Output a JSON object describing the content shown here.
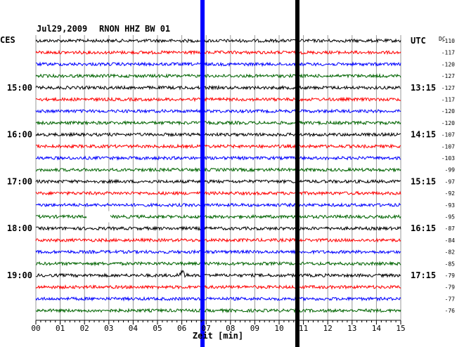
{
  "header": {
    "date": "Jul29,2009",
    "station": "RNON HHZ BW 01",
    "left_zone": "CES",
    "right_zone": "UTC",
    "dc_label": "DC"
  },
  "chart_data": {
    "type": "line",
    "title": "Jul29,2009  RNON HHZ BW 01",
    "xlabel": "Zeit [min]",
    "xlim": [
      0,
      15
    ],
    "x_ticks": [
      "00",
      "01",
      "02",
      "03",
      "04",
      "05",
      "06",
      "07",
      "08",
      "09",
      "10",
      "11",
      "12",
      "13",
      "14",
      "15"
    ],
    "trace_colors": [
      "#000000",
      "#ff0000",
      "#0000ff",
      "#006400"
    ],
    "left_hour_labels": [
      {
        "trace": 4,
        "label": "15:00"
      },
      {
        "trace": 8,
        "label": "16:00"
      },
      {
        "trace": 12,
        "label": "17:00"
      },
      {
        "trace": 16,
        "label": "18:00"
      },
      {
        "trace": 20,
        "label": "19:00"
      }
    ],
    "right_hour_labels": [
      {
        "trace": 0,
        "label": "UTC"
      },
      {
        "trace": 4,
        "label": "13:15"
      },
      {
        "trace": 8,
        "label": "14:15"
      },
      {
        "trace": 12,
        "label": "15:15"
      },
      {
        "trace": 16,
        "label": "16:15"
      },
      {
        "trace": 20,
        "label": "17:15"
      }
    ],
    "dc_values": [
      "-110",
      "-117",
      "-120",
      "-127",
      "-127",
      "-117",
      "-120",
      "-120",
      "-107",
      "-107",
      "-103",
      "-99",
      "-97",
      "-92",
      "-93",
      "-95",
      "-87",
      "-84",
      "-82",
      "-85",
      "-79",
      "-79",
      "-77",
      "-76"
    ],
    "vertical_markers": [
      {
        "minute": 6.85,
        "color": "#0000ff"
      },
      {
        "minute": 10.75,
        "color": "#000000"
      }
    ],
    "data_gap": {
      "trace": 15,
      "from_minute": 2.1,
      "to_minute": 3.05
    },
    "event": {
      "trace": 20,
      "minute": 6.0
    }
  }
}
